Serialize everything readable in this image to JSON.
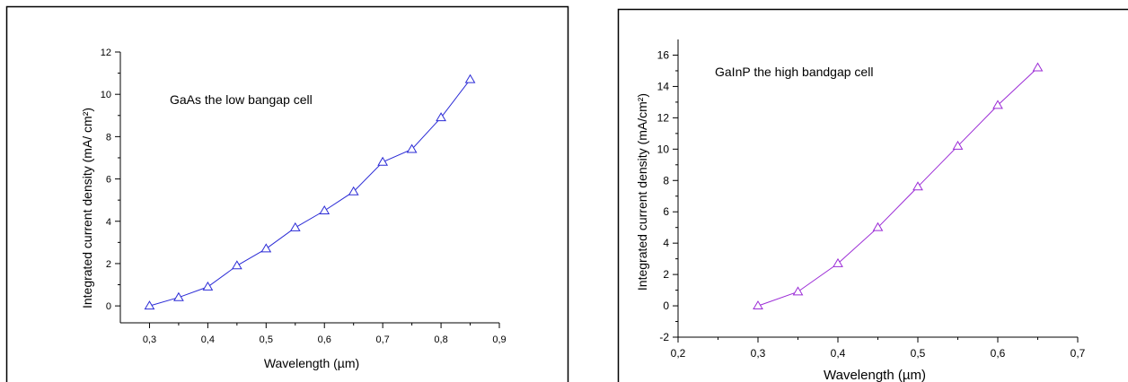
{
  "chart_data": [
    {
      "type": "line",
      "title": "",
      "annotation": "GaAs the low bangap cell",
      "xlabel": "Wavelength (µm)",
      "ylabel": "Integrated current density (mA/ cm²)",
      "xlim": [
        0.25,
        0.9
      ],
      "ylim": [
        -0.8,
        12
      ],
      "xticks": [
        "0,3",
        "0,4",
        "0,5",
        "0,6",
        "0,7",
        "0,8",
        "0,9"
      ],
      "xtick_values": [
        0.3,
        0.4,
        0.5,
        0.6,
        0.7,
        0.8,
        0.9
      ],
      "yticks": [
        "0",
        "2",
        "4",
        "6",
        "8",
        "10",
        "12"
      ],
      "ytick_values": [
        0,
        2,
        4,
        6,
        8,
        10,
        12
      ],
      "color": "#2b2bd6",
      "marker": "open-triangle",
      "grid": false,
      "series": [
        {
          "x": [
            0.3,
            0.35,
            0.4,
            0.45,
            0.5,
            0.55,
            0.6,
            0.65,
            0.7,
            0.75,
            0.8,
            0.85
          ],
          "y": [
            0.0,
            0.4,
            0.9,
            1.9,
            2.7,
            3.7,
            4.5,
            5.4,
            6.8,
            7.4,
            8.9,
            10.7
          ]
        }
      ]
    },
    {
      "type": "line",
      "title": "",
      "annotation": "GaInP the high bandgap cell",
      "xlabel": "Wavelength (µm)",
      "ylabel": "Integrated current density (mA/cm²)",
      "xlim": [
        0.2,
        0.7
      ],
      "ylim": [
        -2,
        17
      ],
      "xticks": [
        "0,2",
        "0,3",
        "0,4",
        "0,5",
        "0,6",
        "0,7"
      ],
      "xtick_values": [
        0.2,
        0.3,
        0.4,
        0.5,
        0.6,
        0.7
      ],
      "yticks": [
        "-2",
        "0",
        "2",
        "4",
        "6",
        "8",
        "10",
        "12",
        "14",
        "16"
      ],
      "ytick_values": [
        -2,
        0,
        2,
        4,
        6,
        8,
        10,
        12,
        14,
        16
      ],
      "color": "#9b2bd6",
      "marker": "open-triangle",
      "grid": false,
      "series": [
        {
          "x": [
            0.3,
            0.35,
            0.4,
            0.45,
            0.5,
            0.55,
            0.6,
            0.65
          ],
          "y": [
            0.0,
            0.9,
            2.7,
            5.0,
            7.6,
            10.2,
            12.8,
            15.2
          ]
        }
      ]
    }
  ]
}
